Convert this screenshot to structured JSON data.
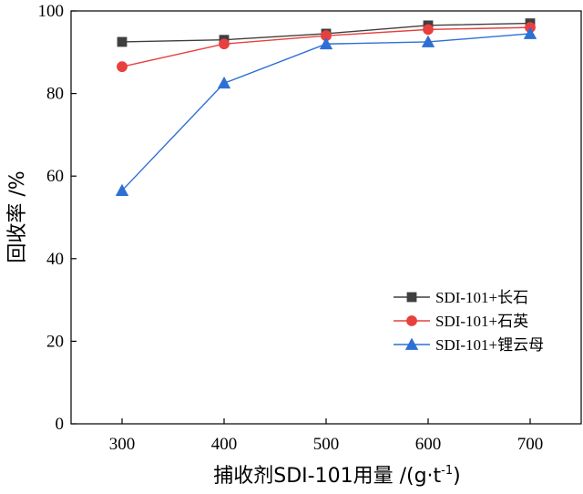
{
  "chart_data": {
    "type": "line",
    "title": "",
    "x": [
      300,
      400,
      500,
      600,
      700
    ],
    "xlim": [
      250,
      750
    ],
    "ylim": [
      0,
      100
    ],
    "xticks": [
      300,
      400,
      500,
      600,
      700
    ],
    "yticks": [
      0,
      20,
      40,
      60,
      80,
      100
    ],
    "xlabel": {
      "main": "捕收剂SDI-101用量 /(g·t",
      "sup": "-1",
      "end": ")"
    },
    "ylabel": "回收率 /%",
    "grid": false,
    "legend_position": "bottom-right",
    "series": [
      {
        "name": "SDI-101+长石",
        "values": [
          92.5,
          93.0,
          94.5,
          96.5,
          97.0
        ],
        "color": "#3f3f3f",
        "marker": "square"
      },
      {
        "name": "SDI-101+石英",
        "values": [
          86.5,
          92.0,
          94.0,
          95.5,
          96.0
        ],
        "color": "#e8403e",
        "marker": "circle"
      },
      {
        "name": "SDI-101+锂云母",
        "values": [
          56.5,
          82.5,
          92.0,
          92.5,
          94.5
        ],
        "color": "#2e6fd6",
        "marker": "triangle"
      }
    ]
  }
}
